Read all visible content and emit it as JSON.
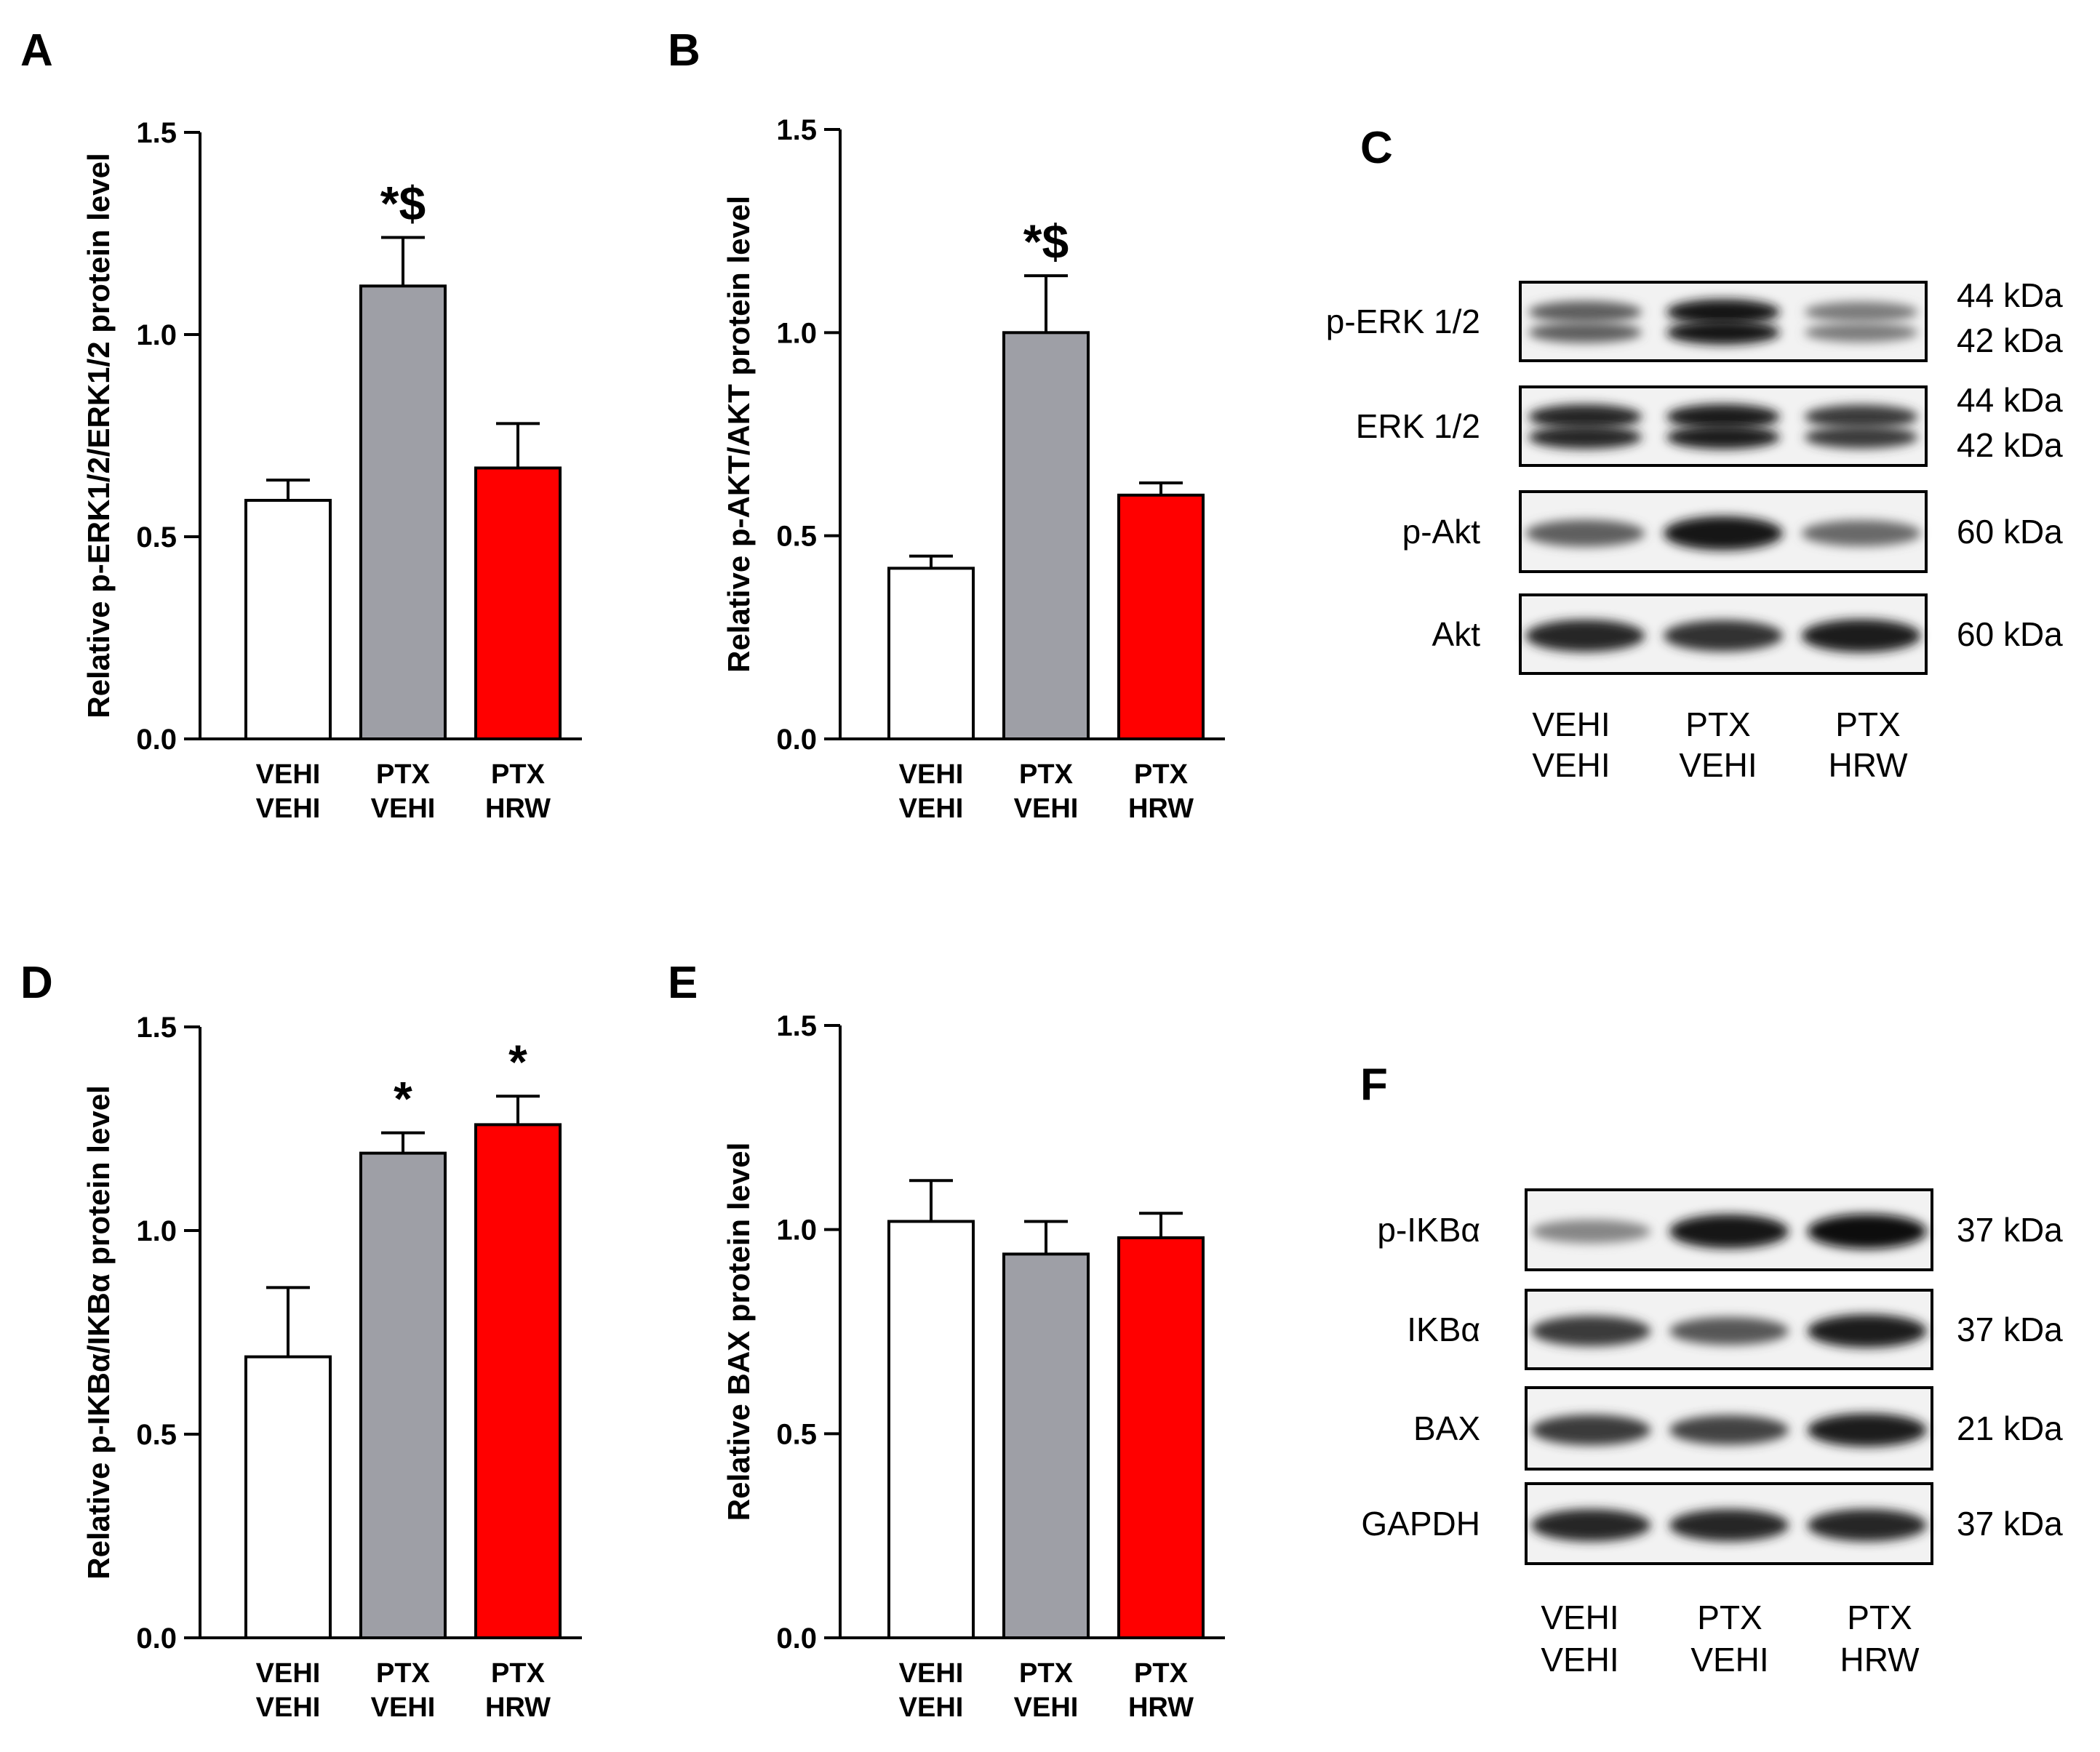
{
  "chart_data": [
    {
      "type": "bar",
      "panel": "A",
      "ylabel": "Relative p-ERK1/2/ERK1/2 protein level",
      "ylim": [
        0,
        1.5
      ],
      "yticks": [
        "0.0",
        "0.5",
        "1.0",
        "1.5"
      ],
      "categories": [
        [
          "VEHI",
          "VEHI"
        ],
        [
          "PTX",
          "VEHI"
        ],
        [
          "PTX",
          "HRW"
        ]
      ],
      "values": [
        0.59,
        1.12,
        0.67
      ],
      "errors": [
        0.05,
        0.12,
        0.11
      ],
      "significance": [
        "",
        "*$",
        ""
      ],
      "colors": [
        "#ffffff",
        "#9e9fa6",
        "#ff0000"
      ]
    },
    {
      "type": "bar",
      "panel": "B",
      "ylabel": "Relative p-AKT/AKT protein level",
      "ylim": [
        0,
        1.5
      ],
      "yticks": [
        "0.0",
        "0.5",
        "1.0",
        "1.5"
      ],
      "categories": [
        [
          "VEHI",
          "VEHI"
        ],
        [
          "PTX",
          "VEHI"
        ],
        [
          "PTX",
          "HRW"
        ]
      ],
      "values": [
        0.42,
        1.0,
        0.6
      ],
      "errors": [
        0.03,
        0.14,
        0.03
      ],
      "significance": [
        "",
        "*$",
        ""
      ],
      "colors": [
        "#ffffff",
        "#9e9fa6",
        "#ff0000"
      ]
    },
    {
      "type": "bar",
      "panel": "D",
      "ylabel": "Relative p-IKBα/IKBα protein level",
      "ylim": [
        0,
        1.5
      ],
      "yticks": [
        "0.0",
        "0.5",
        "1.0",
        "1.5"
      ],
      "categories": [
        [
          "VEHI",
          "VEHI"
        ],
        [
          "PTX",
          "VEHI"
        ],
        [
          "PTX",
          "HRW"
        ]
      ],
      "values": [
        0.69,
        1.19,
        1.26
      ],
      "errors": [
        0.17,
        0.05,
        0.07
      ],
      "significance": [
        "",
        "*",
        "*"
      ],
      "colors": [
        "#ffffff",
        "#9e9fa6",
        "#ff0000"
      ]
    },
    {
      "type": "bar",
      "panel": "E",
      "ylabel": "Relative BAX protein level",
      "ylim": [
        0,
        1.5
      ],
      "yticks": [
        "0.0",
        "0.5",
        "1.0",
        "1.5"
      ],
      "categories": [
        [
          "VEHI",
          "VEHI"
        ],
        [
          "PTX",
          "VEHI"
        ],
        [
          "PTX",
          "HRW"
        ]
      ],
      "values": [
        1.02,
        0.94,
        0.98
      ],
      "errors": [
        0.1,
        0.08,
        0.06
      ],
      "significance": [
        "",
        "",
        ""
      ],
      "colors": [
        "#ffffff",
        "#9e9fa6",
        "#ff0000"
      ]
    }
  ],
  "blots": [
    {
      "panel": "C",
      "lanes": [
        [
          "VEHI",
          "VEHI"
        ],
        [
          "PTX",
          "VEHI"
        ],
        [
          "PTX",
          "HRW"
        ]
      ],
      "rows": [
        {
          "label": "p-ERK 1/2",
          "kda": [
            "44 kDa",
            "42 kDa"
          ],
          "intensity": [
            0.55,
            0.95,
            0.4
          ],
          "double": true
        },
        {
          "label": "ERK 1/2",
          "kda": [
            "44 kDa",
            "42 kDa"
          ],
          "intensity": [
            0.85,
            0.9,
            0.75
          ],
          "double": true
        },
        {
          "label": "p-Akt",
          "kda": [
            "60 kDa"
          ],
          "intensity": [
            0.55,
            0.95,
            0.5
          ],
          "double": false
        },
        {
          "label": "Akt",
          "kda": [
            "60 kDa"
          ],
          "intensity": [
            0.85,
            0.8,
            0.9
          ],
          "double": false
        }
      ]
    },
    {
      "panel": "F",
      "lanes": [
        [
          "VEHI",
          "VEHI"
        ],
        [
          "PTX",
          "VEHI"
        ],
        [
          "PTX",
          "HRW"
        ]
      ],
      "rows": [
        {
          "label": "p-IKBα",
          "kda": [
            "37 kDa"
          ],
          "intensity": [
            0.35,
            0.95,
            1.0
          ],
          "double": false
        },
        {
          "label": "IKBα",
          "kda": [
            "37 kDa"
          ],
          "intensity": [
            0.75,
            0.6,
            0.9
          ],
          "double": false
        },
        {
          "label": "BAX",
          "kda": [
            "21 kDa"
          ],
          "intensity": [
            0.75,
            0.7,
            0.9
          ],
          "double": false
        },
        {
          "label": "GAPDH",
          "kda": [
            "37 kDa"
          ],
          "intensity": [
            0.85,
            0.85,
            0.85
          ],
          "double": false
        }
      ]
    }
  ]
}
